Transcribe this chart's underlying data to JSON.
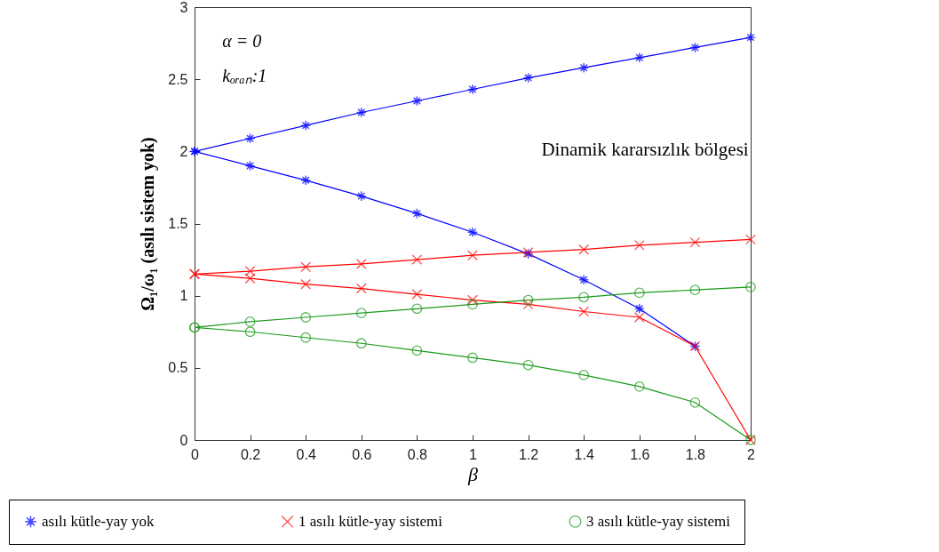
{
  "chart_data": {
    "type": "line",
    "xlabel": "β",
    "ylabel": "Ω₁/ω₁  (asılı sistem yok)",
    "x": [
      0,
      0.2,
      0.4,
      0.6,
      0.8,
      1,
      1.2,
      1.4,
      1.6,
      1.8,
      2
    ],
    "xlim": [
      0,
      2
    ],
    "xticks": [
      0,
      0.2,
      0.4,
      0.6,
      0.8,
      1,
      1.2,
      1.4,
      1.6,
      1.8,
      2
    ],
    "ylim": [
      0,
      3
    ],
    "yticks": [
      0,
      0.5,
      1,
      1.5,
      2,
      2.5,
      3
    ],
    "annotations": [
      "α = 0",
      "kₒᵣₐₙ:1",
      "Dinamik kararsızlık bölgesi"
    ],
    "legend": "bottom",
    "grid": false,
    "series": [
      {
        "name": "asılı kütle-yay yok",
        "color": "#0000ff",
        "marker": "star",
        "values": [
          2,
          2.09,
          2.18,
          2.27,
          2.35,
          2.43,
          2.51,
          2.58,
          2.65,
          2.72,
          2.79
        ]
      },
      {
        "color": "#0000ff",
        "marker": "star",
        "values": [
          2,
          1.9,
          1.8,
          1.69,
          1.57,
          1.44,
          1.29,
          1.11,
          0.91,
          0.65,
          null
        ]
      },
      {
        "name": "1 asılı kütle-yay sistemi",
        "color": "#ff0000",
        "marker": "cross",
        "values": [
          1.15,
          1.17,
          1.2,
          1.22,
          1.25,
          1.28,
          1.3,
          1.32,
          1.35,
          1.37,
          1.39
        ]
      },
      {
        "color": "#ff0000",
        "marker": "cross",
        "values": [
          1.15,
          1.12,
          1.08,
          1.05,
          1.01,
          0.97,
          0.94,
          0.89,
          0.85,
          0.65,
          0
        ]
      },
      {
        "name": "3 asılı kütle-yay sistemi",
        "color": "#1a9a1a",
        "marker": "circle",
        "values": [
          0.78,
          0.82,
          0.85,
          0.88,
          0.91,
          0.94,
          0.97,
          0.99,
          1.02,
          1.04,
          1.06
        ]
      },
      {
        "color": "#1a9a1a",
        "marker": "circle",
        "values": [
          0.78,
          0.75,
          0.71,
          0.67,
          0.62,
          0.57,
          0.52,
          0.45,
          0.37,
          0.26,
          0
        ]
      }
    ]
  }
}
